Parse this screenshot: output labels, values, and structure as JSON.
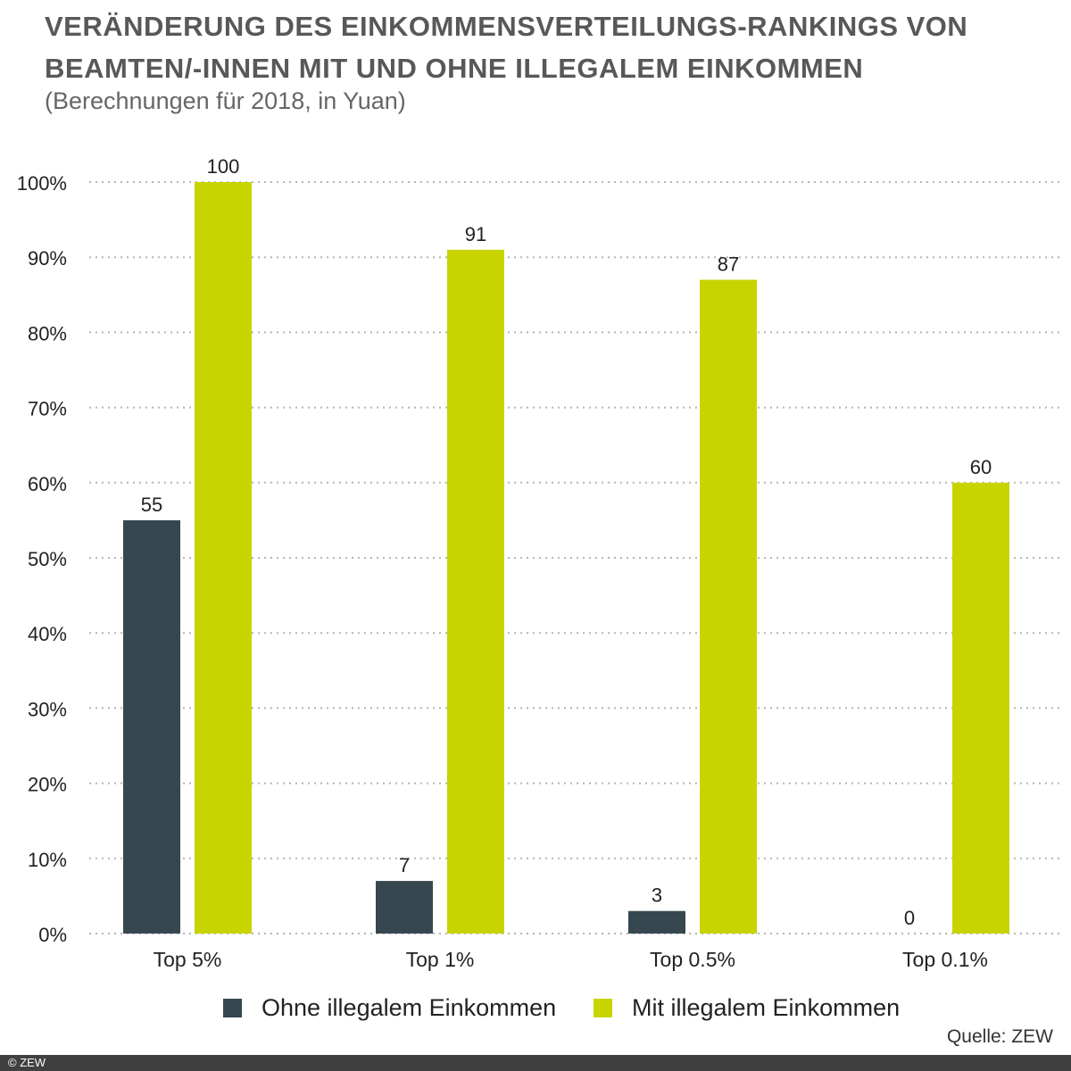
{
  "chart_data": {
    "type": "bar",
    "title": "VERÄNDERUNG DES EINKOMMENSVERTEILUNGS-RANKINGS VON BEAMTEN/-INNEN MIT UND OHNE ILLEGALEM EINKOMMEN",
    "title_lines": [
      "VERÄNDERUNG DES EINKOMMENSVERTEILUNGS-RANKINGS VON",
      "BEAMTEN/-INNEN MIT UND OHNE ILLEGALEM EINKOMMEN"
    ],
    "subtitle": "(Berechnungen für 2018, in Yuan)",
    "categories": [
      "Top 5%",
      "Top 1%",
      "Top 0.5%",
      "Top 0.1%"
    ],
    "series": [
      {
        "name": "Ohne illegalem Einkommen",
        "color": "#37474f",
        "values": [
          55,
          7,
          3,
          0
        ]
      },
      {
        "name": "Mit illegalem Einkommen",
        "color": "#c8d400",
        "values": [
          100,
          91,
          87,
          60
        ]
      }
    ],
    "ylim": [
      0,
      100
    ],
    "yticks": [
      "0%",
      "10%",
      "20%",
      "30%",
      "40%",
      "50%",
      "60%",
      "70%",
      "80%",
      "90%",
      "100%"
    ],
    "grid": true,
    "legend": "bottom",
    "xlabel": "",
    "ylabel": ""
  },
  "source": "Quelle: ZEW",
  "footer": "© ZEW"
}
